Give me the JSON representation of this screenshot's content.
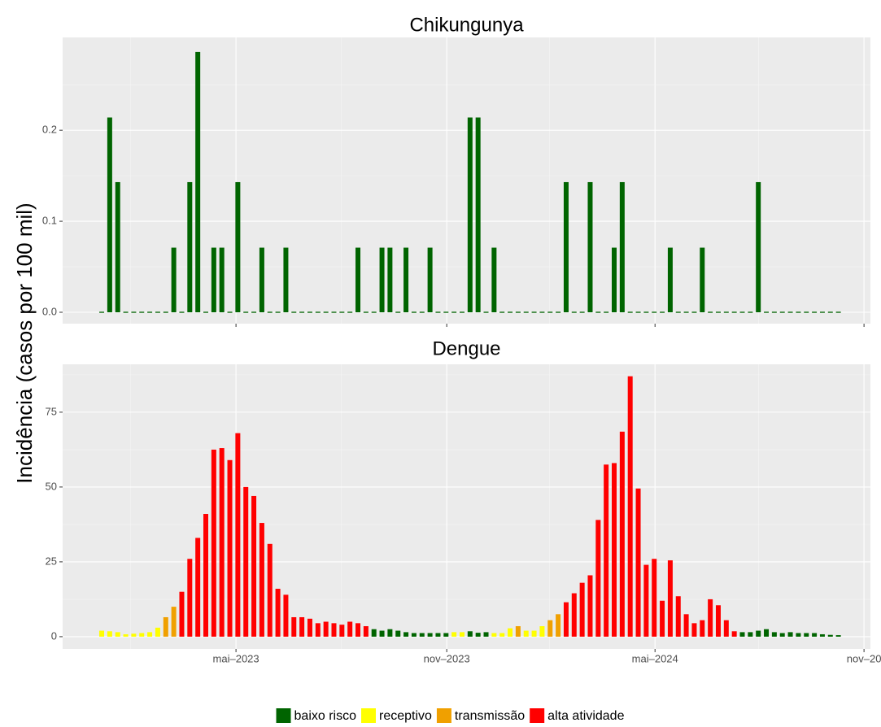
{
  "chart_data": {
    "type": "bar",
    "ylabel": "Incidência (casos por 100 mil)",
    "categories": [
      null,
      null,
      null,
      null,
      null,
      null,
      null,
      null,
      null,
      null,
      null,
      null,
      null,
      null,
      null,
      null,
      null,
      null,
      null,
      null,
      null,
      null,
      null,
      null,
      null,
      null,
      null,
      null,
      null,
      null,
      null,
      null,
      null,
      null,
      null,
      null,
      null,
      null,
      null,
      null,
      null,
      null,
      null,
      null,
      null,
      null,
      null,
      null,
      null,
      null,
      null,
      null,
      null,
      null,
      null,
      null,
      null,
      null,
      null,
      null,
      null,
      null,
      null,
      null,
      null,
      null,
      null,
      null,
      null,
      null,
      null,
      null,
      null,
      null,
      null,
      null,
      null,
      null,
      null,
      null,
      null,
      null,
      null,
      null,
      null,
      null,
      null,
      null,
      null,
      null,
      null,
      null,
      null
    ],
    "xlim": [
      -4.88,
      96.0
    ],
    "xticks": [
      {
        "value": 16.77,
        "label": "mai–2023"
      },
      {
        "value": 43.09,
        "label": "nov–2023"
      },
      {
        "value": 69.1,
        "label": "mai–2024"
      },
      {
        "value": 95.2,
        "label": "nov–20"
      }
    ],
    "grid": true,
    "legend_position": "bottom",
    "legend": [
      {
        "name": "baixo risco",
        "color": "#006400"
      },
      {
        "name": "receptivo",
        "color": "#FFFF00"
      },
      {
        "name": "transmissão",
        "color": "#F0A000"
      },
      {
        "name": "alta atividade",
        "color": "#FF0000"
      }
    ],
    "panels": [
      {
        "title": "Chikungunya",
        "color": "#006400",
        "ylim": [
          -0.0125,
          0.302
        ],
        "yticks": [
          {
            "value": 0,
            "label": "0.0"
          },
          0.1,
          0.2
        ],
        "values": [
          0,
          0.214,
          0.143,
          0,
          0,
          0,
          0,
          0,
          0,
          0.071,
          0,
          0.143,
          0.286,
          0,
          0.071,
          0.071,
          0,
          0.143,
          0,
          0,
          0.071,
          0,
          0,
          0.071,
          0,
          0,
          0,
          0,
          0,
          0,
          0,
          0,
          0.071,
          0,
          0,
          0.071,
          0.071,
          0,
          0.071,
          0,
          0,
          0.071,
          0,
          0,
          0,
          0,
          0.214,
          0.214,
          0,
          0.071,
          0,
          0,
          0,
          0,
          0,
          0,
          0,
          0,
          0.143,
          0,
          0,
          0.143,
          0,
          0,
          0.071,
          0.143,
          0,
          0,
          0,
          0,
          0,
          0.071,
          0,
          0,
          0,
          0.071,
          0,
          0,
          0,
          0,
          0,
          0,
          0.143,
          0,
          0,
          0,
          0,
          0,
          0,
          0,
          0,
          0,
          0
        ]
      },
      {
        "title": "Dengue",
        "ylim": [
          -4.1,
          91.0
        ],
        "yticks": [
          0,
          25,
          50,
          75
        ],
        "values": [
          2,
          1.8,
          1.5,
          0.8,
          1,
          1.2,
          1.5,
          3,
          6.5,
          10,
          15,
          26,
          33,
          41,
          62.5,
          63,
          59,
          68,
          50,
          47,
          38,
          31,
          16,
          14,
          6.5,
          6.5,
          6,
          4.5,
          5,
          4.5,
          4,
          5,
          4.5,
          3.5,
          2.5,
          2,
          2.5,
          2,
          1.5,
          1.2,
          1.2,
          1.2,
          1.2,
          1.2,
          1.5,
          1.5,
          1.8,
          1.3,
          1.5,
          1.2,
          1.2,
          2.8,
          3.5,
          2,
          2,
          3.5,
          5.5,
          7.5,
          11.5,
          14.5,
          18,
          20.5,
          39,
          57.5,
          58,
          68.5,
          87,
          49.5,
          24,
          26,
          12,
          25.5,
          13.5,
          7.5,
          4.5,
          5.5,
          12.5,
          10.5,
          5.5,
          1.8,
          1.5,
          1.5,
          2,
          2.5,
          1.5,
          1.2,
          1.5,
          1.2,
          1.2,
          1.2,
          0.8,
          0.6,
          0.5
        ],
        "colors": [
          "#FFFF00",
          "#FFFF00",
          "#FFFF00",
          "#FFFF00",
          "#FFFF00",
          "#FFFF00",
          "#FFFF00",
          "#FFFF00",
          "#F0A000",
          "#F0A000",
          "#FF0000",
          "#FF0000",
          "#FF0000",
          "#FF0000",
          "#FF0000",
          "#FF0000",
          "#FF0000",
          "#FF0000",
          "#FF0000",
          "#FF0000",
          "#FF0000",
          "#FF0000",
          "#FF0000",
          "#FF0000",
          "#FF0000",
          "#FF0000",
          "#FF0000",
          "#FF0000",
          "#FF0000",
          "#FF0000",
          "#FF0000",
          "#FF0000",
          "#FF0000",
          "#FF0000",
          "#006400",
          "#006400",
          "#006400",
          "#006400",
          "#006400",
          "#006400",
          "#006400",
          "#006400",
          "#006400",
          "#006400",
          "#FFFF00",
          "#FFFF00",
          "#006400",
          "#006400",
          "#006400",
          "#FFFF00",
          "#FFFF00",
          "#FFFF00",
          "#F0A000",
          "#FFFF00",
          "#FFFF00",
          "#FFFF00",
          "#F0A000",
          "#F0A000",
          "#FF0000",
          "#FF0000",
          "#FF0000",
          "#FF0000",
          "#FF0000",
          "#FF0000",
          "#FF0000",
          "#FF0000",
          "#FF0000",
          "#FF0000",
          "#FF0000",
          "#FF0000",
          "#FF0000",
          "#FF0000",
          "#FF0000",
          "#FF0000",
          "#FF0000",
          "#FF0000",
          "#FF0000",
          "#FF0000",
          "#FF0000",
          "#FF0000",
          "#006400",
          "#006400",
          "#006400",
          "#006400",
          "#006400",
          "#006400",
          "#006400",
          "#006400",
          "#006400",
          "#006400",
          "#006400",
          "#006400",
          "#006400"
        ]
      }
    ]
  }
}
